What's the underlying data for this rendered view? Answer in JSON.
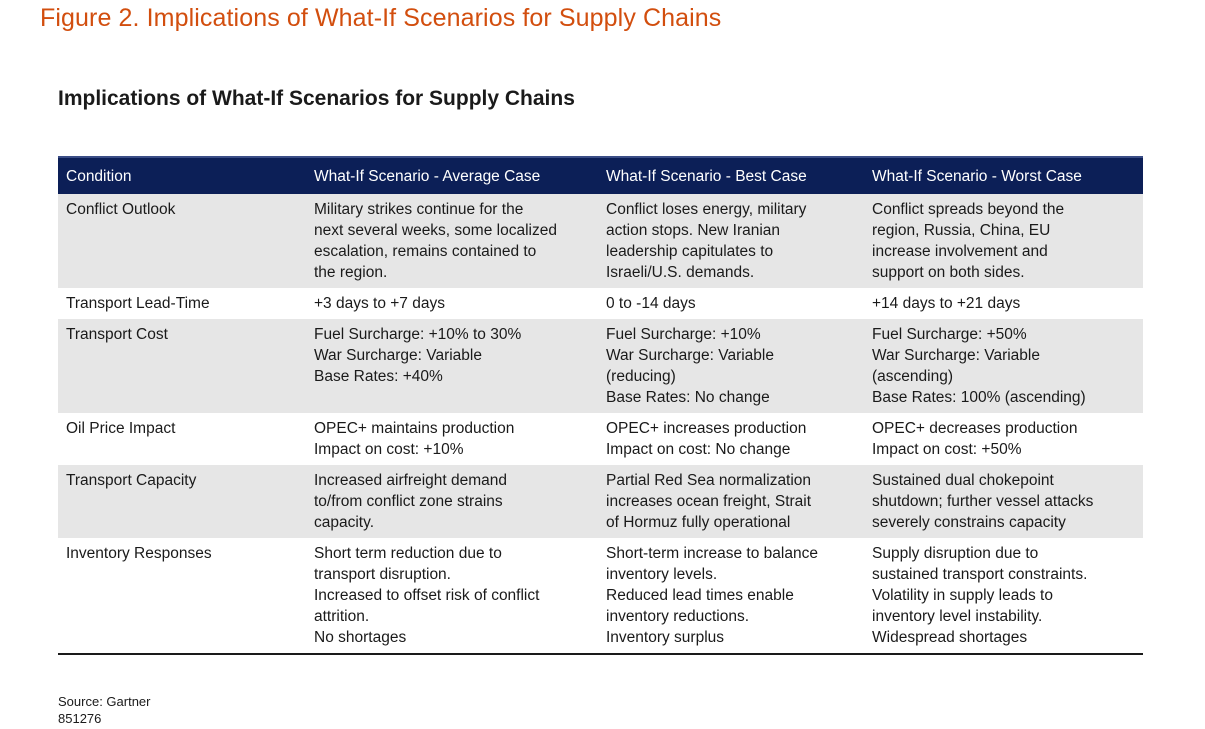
{
  "figure_title": "Figure 2. Implications of What-If Scenarios for Supply Chains",
  "table_title": "Implications of What-If Scenarios for Supply Chains",
  "columns": [
    "Condition",
    "What-If Scenario - Average Case",
    "What-If Scenario - Best Case",
    "What-If Scenario - Worst Case"
  ],
  "rows": [
    {
      "condition": "Conflict Outlook",
      "average": "Military strikes continue for the\nnext several weeks, some localized\nescalation, remains contained to\nthe region.",
      "best": "Conflict loses energy, military\naction stops. New Iranian\nleadership capitulates to\nIsraeli/U.S. demands.",
      "worst": "Conflict spreads beyond the\nregion, Russia, China, EU\nincrease involvement and\nsupport on both sides."
    },
    {
      "condition": "Transport Lead-Time",
      "average": "+3 days to +7 days",
      "best": "0 to -14 days",
      "worst": "+14 days to +21 days"
    },
    {
      "condition": "Transport Cost",
      "average": "Fuel Surcharge: +10% to 30%\nWar Surcharge: Variable\nBase Rates: +40%",
      "best": "Fuel Surcharge: +10%\nWar Surcharge: Variable\n(reducing)\nBase Rates: No change",
      "worst": "Fuel Surcharge: +50%\nWar Surcharge: Variable\n(ascending)\nBase Rates: 100% (ascending)"
    },
    {
      "condition": "Oil Price Impact",
      "average": "OPEC+ maintains production\nImpact on cost: +10%",
      "best": "OPEC+ increases production\nImpact on cost: No change",
      "worst": "OPEC+ decreases production\nImpact on cost: +50%"
    },
    {
      "condition": "Transport Capacity",
      "average": "Increased airfreight demand\nto/from conflict zone strains\ncapacity.",
      "best": "Partial Red Sea normalization\nincreases ocean freight, Strait\nof Hormuz fully operational",
      "worst": "Sustained dual chokepoint\nshutdown; further vessel attacks\nseverely constrains capacity"
    },
    {
      "condition": "Inventory Responses",
      "average": "Short term reduction due to\ntransport disruption.\nIncreased to offset risk of conflict\nattrition.\nNo shortages",
      "best": "Short-term increase to balance\ninventory levels.\nReduced lead times enable\ninventory reductions.\nInventory surplus",
      "worst": "Supply disruption due to\nsustained transport constraints.\nVolatility in supply leads to\ninventory level instability.\nWidespread shortages"
    }
  ],
  "source": "Source: Gartner",
  "doc_id": "851276"
}
